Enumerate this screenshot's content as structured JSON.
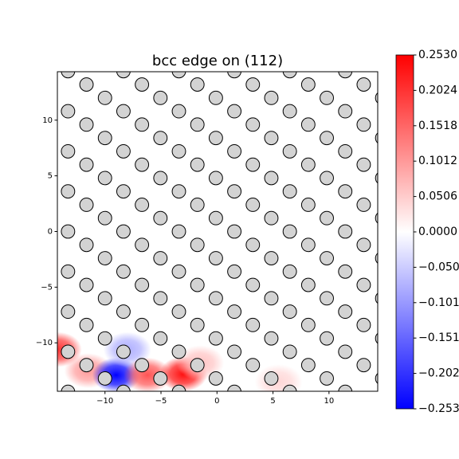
{
  "chart_data": {
    "type": "scatter",
    "title": "bcc edge on (112)",
    "xlim": [
      -14.25,
      14.35
    ],
    "ylim": [
      -14.35,
      14.35
    ],
    "xticks": [
      {
        "value": -10,
        "label": "−10"
      },
      {
        "value": -5,
        "label": "−5"
      },
      0,
      5,
      10
    ],
    "yticks": [
      {
        "value": -10,
        "label": "−10"
      },
      {
        "value": -5,
        "label": "−5"
      },
      0,
      5,
      10
    ],
    "clim": [
      -0.253,
      0.253
    ],
    "cticks": [
      {
        "value": 0.253,
        "label": "0.2530"
      },
      {
        "value": 0.2024,
        "label": "0.2024"
      },
      {
        "value": 0.1518,
        "label": "0.1518"
      },
      {
        "value": 0.1012,
        "label": "0.1012"
      },
      {
        "value": 0.0506,
        "label": "0.0506"
      },
      {
        "value": 0,
        "label": "0.0000"
      },
      {
        "value": -0.0506,
        "label": "−0.050"
      },
      {
        "value": -0.1012,
        "label": "−0.101"
      },
      {
        "value": -0.1518,
        "label": "−0.151"
      },
      {
        "value": -0.2024,
        "label": "−0.202"
      },
      {
        "value": -0.253,
        "label": "−0.253"
      }
    ],
    "atom_color": "#d3d3d3",
    "atoms": [
      {
        "y": 14.4,
        "x": [
          -13.3,
          -8.35,
          -3.4,
          1.55,
          6.5,
          11.45
        ]
      },
      {
        "y": 13.2,
        "x": [
          -11.65,
          -6.7,
          -1.75,
          3.2,
          8.15,
          13.1
        ]
      },
      {
        "y": 12,
        "x": [
          -14.95,
          -10,
          -5.05,
          -0.1,
          4.85,
          9.8,
          14.75
        ]
      },
      {
        "y": 10.8,
        "x": [
          -13.3,
          -8.35,
          -3.4,
          1.55,
          6.5,
          11.45
        ]
      },
      {
        "y": 9.6,
        "x": [
          -11.65,
          -6.7,
          -1.75,
          3.2,
          8.15,
          13.1
        ]
      },
      {
        "y": 8.4,
        "x": [
          -14.95,
          -10,
          -5.05,
          -0.1,
          4.85,
          9.8,
          14.75
        ]
      },
      {
        "y": 7.2,
        "x": [
          -13.3,
          -8.35,
          -3.4,
          1.55,
          6.5,
          11.45
        ]
      },
      {
        "y": 6,
        "x": [
          -11.65,
          -6.7,
          -1.75,
          3.2,
          8.15,
          13.1
        ]
      },
      {
        "y": 4.8,
        "x": [
          -14.95,
          -10,
          -5.05,
          -0.1,
          4.85,
          9.8,
          14.75
        ]
      },
      {
        "y": 3.6,
        "x": [
          -13.3,
          -8.35,
          -3.4,
          1.55,
          6.5,
          11.45
        ]
      },
      {
        "y": 2.4,
        "x": [
          -11.65,
          -6.7,
          -1.75,
          3.2,
          8.15,
          13.1
        ]
      },
      {
        "y": 1.2,
        "x": [
          -14.95,
          -10,
          -5.05,
          -0.1,
          4.85,
          9.8,
          14.75
        ]
      },
      {
        "y": 0,
        "x": [
          -13.3,
          -8.35,
          -3.4,
          1.55,
          6.5,
          11.45
        ]
      },
      {
        "y": -1.2,
        "x": [
          -11.65,
          -6.7,
          -1.75,
          3.2,
          8.15,
          13.1
        ]
      },
      {
        "y": -2.4,
        "x": [
          -14.95,
          -10,
          -5.05,
          -0.1,
          4.85,
          9.8,
          14.75
        ]
      },
      {
        "y": -3.6,
        "x": [
          -13.3,
          -8.35,
          -3.4,
          1.55,
          6.5,
          11.45
        ]
      },
      {
        "y": -4.8,
        "x": [
          -11.65,
          -6.7,
          -1.75,
          3.2,
          8.15,
          13.1
        ]
      },
      {
        "y": -6,
        "x": [
          -14.95,
          -10,
          -5.05,
          -0.1,
          4.85,
          9.8,
          14.75
        ]
      },
      {
        "y": -7.2,
        "x": [
          -13.3,
          -8.35,
          -3.4,
          1.55,
          6.5,
          11.45
        ]
      },
      {
        "y": -8.4,
        "x": [
          -11.65,
          -6.7,
          -1.75,
          3.2,
          8.15,
          13.1
        ]
      },
      {
        "y": -9.6,
        "x": [
          -14.95,
          -10,
          -5.05,
          -0.1,
          4.85,
          9.8,
          14.75
        ]
      },
      {
        "y": -10.8,
        "x": [
          -13.3,
          -8.35,
          -3.4,
          1.55,
          6.5,
          11.45
        ]
      },
      {
        "y": -12,
        "x": [
          -11.65,
          -6.7,
          -1.75,
          3.2,
          8.15,
          13.1
        ]
      },
      {
        "y": -13.2,
        "x": [
          -14.95,
          -10,
          -5.05,
          -0.1,
          4.85,
          9.8,
          14.75
        ]
      },
      {
        "y": -14.4,
        "x": [
          -13.3,
          -8.35,
          -3.4,
          1.55,
          6.5,
          11.45
        ]
      }
    ],
    "field": {
      "x": [
        -14.2,
        -11.5,
        -9,
        -8,
        -6.2,
        -3,
        -1.5,
        5.5
      ],
      "y": [
        -10.6,
        -12.5,
        -12.9,
        -10.6,
        -12.9,
        -12.8,
        -11.8,
        -13.5
      ],
      "values": [
        0.2,
        0.1,
        -0.253,
        -0.08,
        0.17,
        0.24,
        0.06,
        0.04
      ]
    }
  }
}
